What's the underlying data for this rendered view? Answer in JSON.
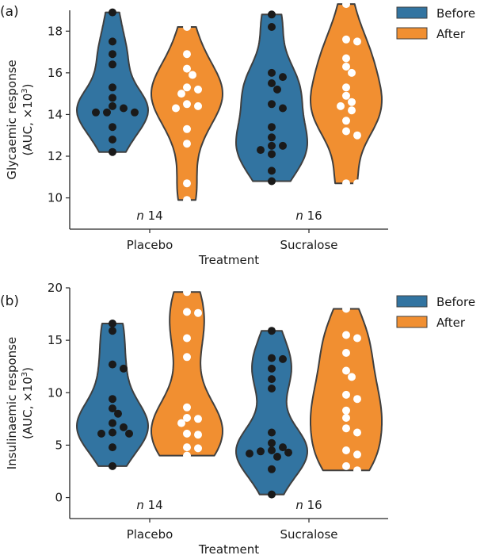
{
  "figure": {
    "colors": {
      "before": "#3274a1",
      "after": "#f18f31",
      "outline": "#3f3f3f",
      "before_dots": "#1a1a1a",
      "after_dots": "#ffffff",
      "axis": "#262626"
    }
  },
  "chart_data": [
    {
      "panel_label": "(a)",
      "type": "violin",
      "title": "",
      "xlabel": "Treatment",
      "ylabel_line1": "Glycaemic response",
      "ylabel_line2": "(AUC, ×10",
      "ylabel_sup": "3",
      "ylabel_close": ")",
      "ylim": [
        8.5,
        19.0
      ],
      "yticks": [
        10,
        12,
        14,
        16,
        18
      ],
      "categories": [
        "Placebo",
        "Sucralose"
      ],
      "n_labels": [
        {
          "italic": "n",
          "value": "14"
        },
        {
          "italic": "n",
          "value": "16"
        }
      ],
      "legend": {
        "placement": "top-right",
        "entries": [
          "Before",
          "After"
        ]
      },
      "series": [
        {
          "name": "Before",
          "values": [
            [
              18.9,
              17.5,
              16.9,
              16.4,
              15.3,
              14.8,
              14.4,
              14.3,
              14.1,
              14.1,
              14.1,
              13.4,
              12.8,
              12.2
            ],
            [
              18.8,
              18.2,
              16.0,
              15.8,
              15.5,
              15.2,
              14.5,
              14.3,
              13.4,
              12.9,
              12.5,
              12.5,
              12.3,
              12.1,
              11.3,
              10.8
            ]
          ]
        },
        {
          "name": "After",
          "values": [
            [
              18.2,
              16.9,
              16.2,
              15.9,
              15.3,
              15.2,
              15.0,
              14.5,
              14.4,
              14.3,
              13.3,
              12.6,
              10.7,
              9.9
            ],
            [
              19.3,
              17.6,
              17.5,
              16.7,
              16.3,
              16.0,
              15.3,
              14.9,
              14.6,
              14.4,
              14.2,
              13.7,
              13.2,
              13.0,
              10.7,
              10.7
            ]
          ]
        }
      ]
    },
    {
      "panel_label": "(b)",
      "type": "violin",
      "title": "",
      "xlabel": "Treatment",
      "ylabel_line1": "Insulinaemic response",
      "ylabel_line2": "(AUC, ×10",
      "ylabel_sup": "3",
      "ylabel_close": ")",
      "ylim": [
        -2.0,
        20.0
      ],
      "yticks": [
        0,
        5,
        10,
        15,
        20
      ],
      "categories": [
        "Placebo",
        "Sucralose"
      ],
      "n_labels": [
        {
          "italic": "n",
          "value": "14"
        },
        {
          "italic": "n",
          "value": "16"
        }
      ],
      "legend": {
        "placement": "top-right",
        "entries": [
          "Before",
          "After"
        ]
      },
      "series": [
        {
          "name": "Before",
          "values": [
            [
              16.6,
              15.9,
              12.7,
              12.3,
              9.4,
              8.5,
              8.0,
              7.1,
              6.7,
              6.2,
              6.1,
              6.1,
              4.8,
              3.0
            ],
            [
              15.9,
              13.3,
              13.2,
              12.3,
              11.3,
              10.4,
              6.2,
              5.2,
              4.8,
              4.5,
              4.4,
              4.3,
              4.2,
              3.9,
              2.7,
              0.3
            ]
          ]
        },
        {
          "name": "After",
          "values": [
            [
              19.6,
              17.7,
              17.6,
              15.2,
              13.4,
              8.6,
              7.6,
              7.5,
              7.1,
              6.1,
              6.0,
              4.8,
              4.7,
              4.0
            ],
            [
              18.0,
              15.5,
              15.2,
              13.8,
              12.1,
              11.5,
              9.8,
              9.4,
              8.3,
              7.6,
              6.6,
              6.2,
              4.5,
              4.1,
              3.0,
              2.6
            ]
          ]
        }
      ]
    }
  ]
}
